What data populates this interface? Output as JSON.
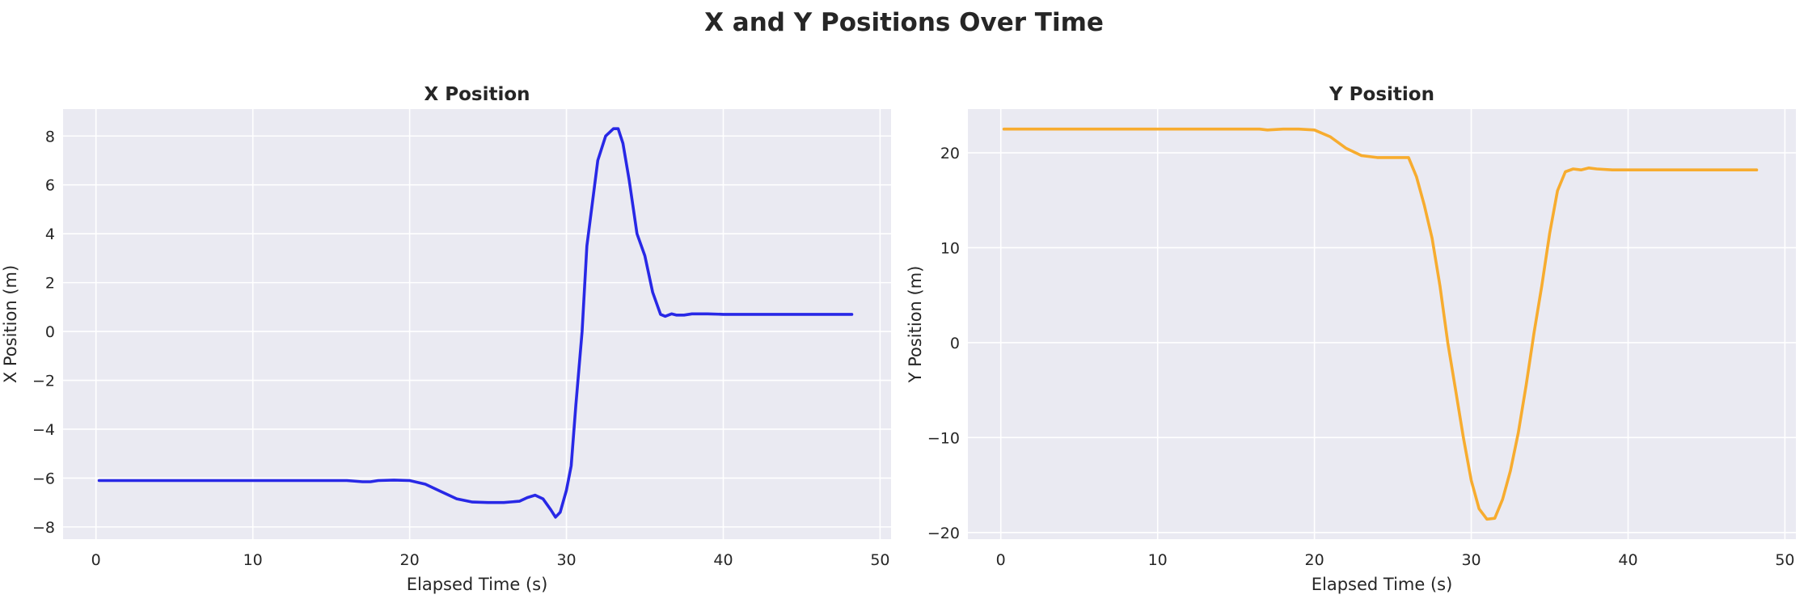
{
  "suptitle": "X and Y Positions Over Time",
  "colors": {
    "panel_bg": "#eaeaf2",
    "grid": "#ffffff",
    "x_series": "#2828e6",
    "y_series": "#f7ac2f",
    "text": "#262626"
  },
  "chart_data": [
    {
      "type": "line",
      "title": "X Position",
      "xlabel": "Elapsed Time (s)",
      "ylabel": "X Position (m)",
      "xlim": [
        -2.1,
        50.7
      ],
      "ylim": [
        -8.5,
        9.1
      ],
      "xticks": [
        0,
        10,
        20,
        30,
        40,
        50
      ],
      "yticks": [
        -8,
        -6,
        -4,
        -2,
        0,
        2,
        4,
        6,
        8
      ],
      "grid": true,
      "series": [
        {
          "color": "#2828e6",
          "x": [
            0.2,
            5,
            10,
            15,
            16,
            17,
            17.5,
            18,
            19,
            20,
            21,
            22,
            23,
            24,
            25,
            26,
            27,
            27.5,
            28,
            28.5,
            29,
            29.3,
            29.6,
            30,
            30.3,
            30.6,
            31,
            31.3,
            31.6,
            32,
            32.5,
            33,
            33.3,
            33.6,
            34,
            34.5,
            35,
            35.5,
            36,
            36.3,
            36.7,
            37,
            37.5,
            38,
            39,
            40,
            45,
            48.2
          ],
          "y": [
            -6.1,
            -6.1,
            -6.1,
            -6.1,
            -6.1,
            -6.15,
            -6.15,
            -6.1,
            -6.08,
            -6.1,
            -6.25,
            -6.55,
            -6.85,
            -6.98,
            -7.0,
            -7.0,
            -6.95,
            -6.8,
            -6.7,
            -6.85,
            -7.3,
            -7.6,
            -7.4,
            -6.5,
            -5.5,
            -3.0,
            0.0,
            3.5,
            5.0,
            7.0,
            8.0,
            8.3,
            8.3,
            7.7,
            6.2,
            4.0,
            3.1,
            1.6,
            0.7,
            0.62,
            0.72,
            0.67,
            0.67,
            0.72,
            0.72,
            0.7,
            0.7,
            0.7
          ]
        }
      ]
    },
    {
      "type": "line",
      "title": "Y Position",
      "xlabel": "Elapsed Time (s)",
      "ylabel": "Y Position (m)",
      "xlim": [
        -2.1,
        50.7
      ],
      "ylim": [
        -20.7,
        24.6
      ],
      "xticks": [
        0,
        10,
        20,
        30,
        40,
        50
      ],
      "yticks": [
        -20,
        -10,
        0,
        10,
        20
      ],
      "grid": true,
      "series": [
        {
          "color": "#f7ac2f",
          "x": [
            0.2,
            5,
            10,
            15,
            16.5,
            17,
            18,
            19,
            20,
            21,
            22,
            23,
            24,
            25,
            26,
            26.5,
            27,
            27.5,
            28,
            28.5,
            29,
            29.5,
            30,
            30.5,
            31,
            31.5,
            32,
            32.5,
            33,
            33.5,
            34,
            34.5,
            35,
            35.5,
            36,
            36.5,
            37,
            37.5,
            38,
            39,
            40,
            45,
            48.2
          ],
          "y": [
            22.5,
            22.5,
            22.5,
            22.5,
            22.5,
            22.4,
            22.5,
            22.5,
            22.4,
            21.7,
            20.5,
            19.7,
            19.5,
            19.5,
            19.5,
            17.5,
            14.5,
            11.0,
            6.0,
            0.0,
            -5.0,
            -10.0,
            -14.5,
            -17.5,
            -18.6,
            -18.5,
            -16.5,
            -13.5,
            -9.5,
            -4.5,
            1.0,
            6.0,
            11.5,
            16.0,
            18.0,
            18.3,
            18.2,
            18.4,
            18.3,
            18.2,
            18.2,
            18.2,
            18.2
          ]
        }
      ]
    }
  ]
}
